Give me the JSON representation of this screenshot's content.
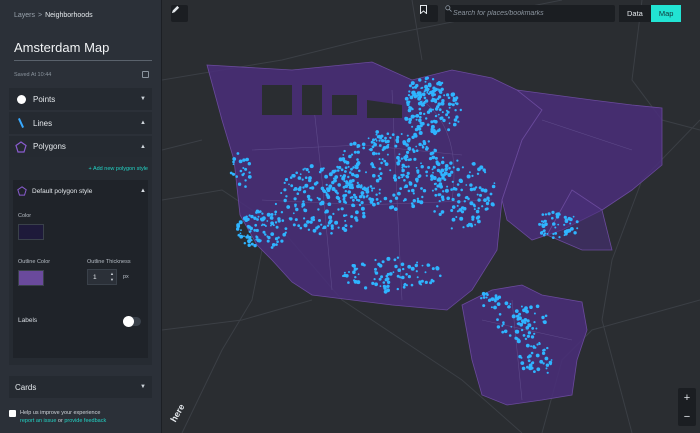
{
  "breadcrumb": {
    "root": "Layers",
    "separator": ">",
    "current": "Neighborhoods"
  },
  "map_title": "Amsterdam Map",
  "saved_text": "Saved At 10:44",
  "sections": {
    "points": {
      "label": "Points",
      "state": "collapsed"
    },
    "lines": {
      "label": "Lines",
      "state": "collapsed"
    },
    "polygons": {
      "label": "Polygons",
      "state": "expanded"
    },
    "cards": {
      "label": "Cards",
      "state": "collapsed"
    }
  },
  "polygons": {
    "add_style_label": "+ Add new polygon style",
    "style": {
      "name": "Default polygon style",
      "color_label": "Color",
      "color": "#1e1a3a",
      "outline_color_label": "Outline Color",
      "outline_color": "#6a4a9c",
      "outline_thickness_label": "Outline Thickness",
      "outline_thickness": "1",
      "thickness_unit": "px",
      "labels_label": "Labels",
      "labels_on": false
    }
  },
  "help": {
    "checkbox_label": "Help us improve your experience",
    "report_link": "report an issue",
    "or_text": "or",
    "feedback_link": "provide feedback"
  },
  "search": {
    "placeholder": "Search for places/bookmarks"
  },
  "view_tabs": [
    {
      "label": "Data",
      "active": false
    },
    {
      "label": "Map",
      "active": true
    }
  ],
  "zoom": {
    "in": "+",
    "out": "−"
  },
  "map_logo": "here",
  "colors": {
    "accent": "#22e3d3",
    "points": "#2fb4ff",
    "polygon_fill": "#4a2e7a"
  }
}
